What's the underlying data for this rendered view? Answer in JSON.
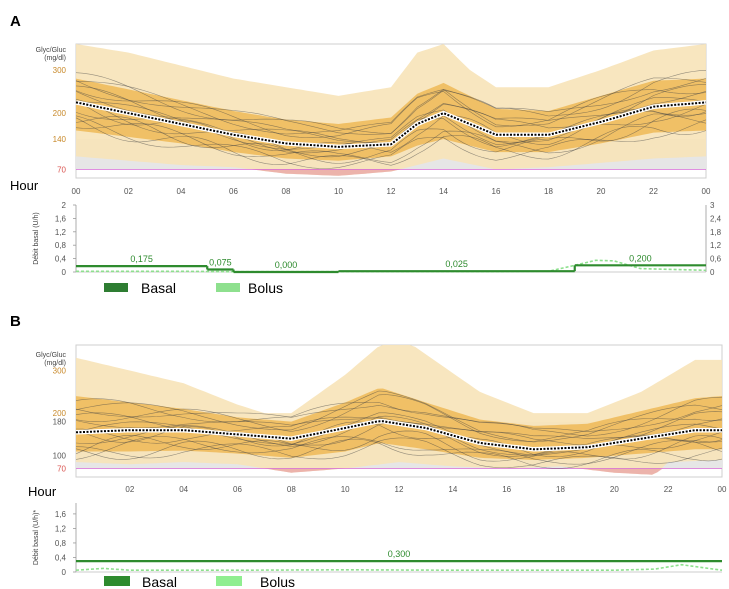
{
  "chart_data": [
    {
      "panel": "A",
      "type": "line",
      "glucose": {
        "ylabel": "Glyc/Gluc\n(mg/dl)",
        "ytick_labels": [
          "300",
          "200",
          "140",
          "70"
        ],
        "ytick_values": [
          300,
          200,
          140,
          70
        ],
        "ylim": [
          50,
          360
        ],
        "target_range": [
          70,
          140
        ],
        "xlabel": "Hour",
        "xtick_labels": [
          "00",
          "02",
          "04",
          "06",
          "08",
          "10",
          "12",
          "14",
          "16",
          "18",
          "20",
          "22",
          "00"
        ],
        "xtick_hours": [
          0,
          2,
          4,
          6,
          8,
          10,
          12,
          14,
          16,
          18,
          20,
          22,
          24
        ],
        "median": {
          "x": [
            0,
            2,
            4,
            6,
            8,
            10,
            12,
            13,
            14,
            15,
            16,
            18,
            20,
            22,
            24
          ],
          "y": [
            225,
            200,
            175,
            150,
            130,
            122,
            128,
            175,
            200,
            175,
            150,
            150,
            180,
            215,
            225
          ]
        },
        "band_outer_upper": {
          "x": [
            0,
            2,
            4,
            6,
            8,
            10,
            12,
            13,
            14,
            15,
            16,
            18,
            20,
            22,
            24
          ],
          "y": [
            360,
            340,
            310,
            280,
            260,
            240,
            260,
            340,
            360,
            300,
            260,
            260,
            300,
            345,
            360
          ]
        },
        "band_outer_lower": {
          "x": [
            0,
            2,
            4,
            6,
            8,
            10,
            12,
            14,
            16,
            18,
            20,
            22,
            24
          ],
          "y": [
            100,
            90,
            80,
            75,
            60,
            55,
            65,
            95,
            70,
            75,
            85,
            95,
            100
          ]
        },
        "band_inner_upper": {
          "x": [
            0,
            2,
            4,
            6,
            8,
            10,
            12,
            13,
            14,
            15,
            16,
            18,
            20,
            22,
            24
          ],
          "y": [
            280,
            255,
            230,
            205,
            185,
            175,
            190,
            245,
            270,
            240,
            210,
            205,
            240,
            275,
            280
          ]
        },
        "band_inner_lower": {
          "x": [
            0,
            2,
            4,
            6,
            8,
            10,
            12,
            13,
            14,
            15,
            16,
            18,
            20,
            22,
            24
          ],
          "y": [
            160,
            145,
            130,
            110,
            95,
            90,
            100,
            125,
            140,
            125,
            110,
            110,
            130,
            155,
            160
          ]
        }
      },
      "basal": {
        "ylabel": "Débit basal (U/h)",
        "left_ticks": [
          "0",
          "0,4",
          "0,8",
          "1,2",
          "1,6",
          "2"
        ],
        "left_tick_values": [
          0,
          0.4,
          0.8,
          1.2,
          1.6,
          2
        ],
        "right_ticks": [
          "0",
          "0,6",
          "1,2",
          "1,8",
          "2,4",
          "3"
        ],
        "right_tick_values": [
          0,
          0.6,
          1.2,
          1.8,
          2.4,
          3
        ],
        "ylim": [
          0,
          2
        ],
        "segments": [
          {
            "start": 0,
            "end": 5,
            "rate": 0.175,
            "label": "0,175"
          },
          {
            "start": 5,
            "end": 6,
            "rate": 0.075,
            "label": "0,075"
          },
          {
            "start": 6,
            "end": 10,
            "rate": 0.0,
            "label": "0,000"
          },
          {
            "start": 10,
            "end": 19,
            "rate": 0.025,
            "label": "0,025"
          },
          {
            "start": 19,
            "end": 24,
            "rate": 0.2,
            "label": "0,200"
          }
        ],
        "bolus": {
          "x": [
            0,
            2,
            4,
            6,
            8,
            10,
            12,
            14,
            16,
            18,
            19,
            19.8,
            20.5,
            21.5,
            24
          ],
          "y": [
            0.02,
            0.02,
            0.02,
            0.01,
            0.01,
            0.01,
            0.01,
            0.01,
            0.01,
            0.02,
            0.2,
            0.35,
            0.33,
            0.1,
            0.05
          ]
        }
      }
    },
    {
      "panel": "B",
      "type": "line",
      "glucose": {
        "ylabel": "Glyc/Gluc\n(mg/dl)",
        "ytick_labels": [
          "300",
          "200",
          "180",
          "100",
          "70"
        ],
        "ytick_values": [
          300,
          200,
          180,
          100,
          70
        ],
        "ylim": [
          50,
          360
        ],
        "target_range": [
          70,
          180
        ],
        "xlabel": "Hour",
        "xtick_labels": [
          "02",
          "04",
          "06",
          "08",
          "10",
          "12",
          "14",
          "16",
          "18",
          "20",
          "22",
          "00"
        ],
        "xtick_hours": [
          2,
          4,
          6,
          8,
          10,
          12,
          14,
          16,
          18,
          20,
          22,
          24
        ],
        "median": {
          "x": [
            0,
            2,
            4,
            6,
            8,
            10,
            11.3,
            13,
            15,
            17,
            19,
            21,
            23,
            24
          ],
          "y": [
            155,
            160,
            160,
            150,
            140,
            165,
            182,
            165,
            130,
            115,
            120,
            140,
            160,
            160
          ]
        },
        "band_outer_upper": {
          "x": [
            0,
            2,
            4,
            6,
            7,
            8,
            10,
            11.3,
            12.5,
            15,
            17,
            19,
            21,
            23,
            24
          ],
          "y": [
            330,
            300,
            270,
            220,
            200,
            200,
            290,
            360,
            360,
            250,
            200,
            200,
            250,
            325,
            325
          ]
        },
        "band_outer_lower": {
          "x": [
            0,
            2,
            4,
            6,
            8,
            10,
            12,
            14,
            16,
            18,
            20,
            21.5,
            22,
            24
          ],
          "y": [
            85,
            80,
            85,
            80,
            60,
            70,
            85,
            75,
            70,
            75,
            60,
            55,
            85,
            90
          ]
        },
        "band_inner_upper": {
          "x": [
            0,
            2,
            4,
            6,
            8,
            10,
            11.3,
            13,
            15,
            17,
            19,
            21,
            23,
            24
          ],
          "y": [
            240,
            225,
            210,
            190,
            180,
            225,
            260,
            225,
            185,
            170,
            175,
            205,
            235,
            240
          ]
        },
        "band_inner_lower": {
          "x": [
            0,
            2,
            4,
            6,
            8,
            10,
            11.3,
            13,
            15,
            17,
            19,
            21,
            23,
            24
          ],
          "y": [
            110,
            110,
            112,
            105,
            95,
            110,
            130,
            115,
            95,
            90,
            95,
            105,
            115,
            115
          ]
        }
      },
      "basal": {
        "ylabel": "Débit basal (U/h)*",
        "left_ticks": [
          "0",
          "0,4",
          "0,8",
          "1,2",
          "1,6"
        ],
        "left_tick_values": [
          0,
          0.4,
          0.8,
          1.2,
          1.6
        ],
        "ylim": [
          0,
          1.9
        ],
        "segments": [
          {
            "start": 0,
            "end": 24,
            "rate": 0.3,
            "label": "0,300"
          }
        ],
        "bolus": {
          "x": [
            0,
            1,
            2,
            6,
            10,
            14,
            18,
            20,
            21.5,
            22.5,
            23.5,
            24
          ],
          "y": [
            0.05,
            0.1,
            0.05,
            0.05,
            0.06,
            0.05,
            0.05,
            0.05,
            0.08,
            0.2,
            0.1,
            0.05
          ]
        }
      }
    }
  ],
  "panels": {
    "a": {
      "letter": "A",
      "hour_label": "Hour",
      "legend": {
        "basal_label": "Basal",
        "bolus_label": "Bolus",
        "basal_color": "#2e7d32",
        "bolus_color": "#8ee08e"
      }
    },
    "b": {
      "letter": "B",
      "hour_label": "Hour",
      "legend": {
        "basal_label": "Basal",
        "bolus_label": "Bolus",
        "basal_color": "#2e8b2e",
        "bolus_color": "#90ee90"
      }
    }
  },
  "colors": {
    "band_outer": "#f7e3b8",
    "band_inner": "#eeb348",
    "target_band": "#e6e6e6",
    "hypo_fill": "#e8a6a6",
    "hypo_line": "#d66ad6",
    "traces": "#444444",
    "median": "#000000",
    "basal_line": "#2e8b2e",
    "bolus_line": "#8ee08e"
  }
}
